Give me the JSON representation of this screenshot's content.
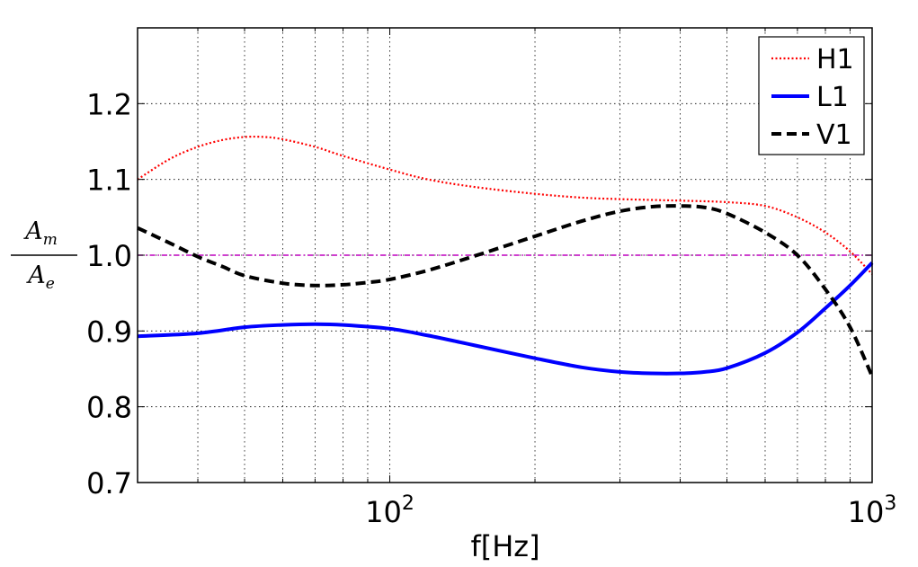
{
  "chart_data": {
    "type": "line",
    "xscale": "log",
    "xlim": [
      30,
      1000
    ],
    "ylim": [
      0.7,
      1.3
    ],
    "grid": true,
    "xlabel": "f[Hz]",
    "ylabel": {
      "numerator": "A",
      "numerator_sub": "m",
      "denominator": "A",
      "denominator_sub": "e"
    },
    "xtick_labels": [
      {
        "value": 100,
        "base": "10",
        "exp": "2"
      },
      {
        "value": 1000,
        "base": "10",
        "exp": "3"
      }
    ],
    "yticks": [
      0.7,
      0.8,
      0.9,
      1.0,
      1.1,
      1.2
    ],
    "ytick_labels": [
      "0.7",
      "0.8",
      "0.9",
      "1.0",
      "1.1",
      "1.2"
    ],
    "legend_position": "top-right",
    "reference_line": {
      "y": 1.0,
      "color": "#bf00bf",
      "style": "dash-dot"
    },
    "series": [
      {
        "name": "H1",
        "color": "#ff0000",
        "style": "dotted",
        "x": [
          30,
          35,
          40,
          45,
          50,
          55,
          60,
          70,
          80,
          100,
          120,
          150,
          200,
          250,
          300,
          400,
          500,
          600,
          700,
          800,
          900,
          1000
        ],
        "y": [
          1.1,
          1.127,
          1.143,
          1.152,
          1.156,
          1.156,
          1.153,
          1.143,
          1.131,
          1.113,
          1.1,
          1.09,
          1.081,
          1.076,
          1.074,
          1.072,
          1.07,
          1.065,
          1.05,
          1.03,
          1.005,
          0.975
        ]
      },
      {
        "name": "L1",
        "color": "#0000ff",
        "style": "solid",
        "x": [
          30,
          40,
          50,
          60,
          70,
          80,
          100,
          120,
          150,
          200,
          250,
          300,
          350,
          400,
          450,
          500,
          600,
          700,
          800,
          900,
          1000
        ],
        "y": [
          0.893,
          0.897,
          0.905,
          0.908,
          0.909,
          0.908,
          0.903,
          0.894,
          0.881,
          0.864,
          0.852,
          0.846,
          0.844,
          0.844,
          0.846,
          0.851,
          0.871,
          0.898,
          0.93,
          0.96,
          0.99
        ]
      },
      {
        "name": "V1",
        "color": "#000000",
        "style": "dashed",
        "x": [
          30,
          35,
          40,
          45,
          50,
          60,
          70,
          80,
          90,
          100,
          120,
          150,
          200,
          250,
          300,
          350,
          400,
          450,
          500,
          600,
          700,
          800,
          900,
          1000
        ],
        "y": [
          1.036,
          1.016,
          0.998,
          0.985,
          0.973,
          0.963,
          0.96,
          0.961,
          0.964,
          0.968,
          0.98,
          0.999,
          1.025,
          1.045,
          1.058,
          1.064,
          1.065,
          1.063,
          1.055,
          1.03,
          1.0,
          0.955,
          0.905,
          0.84
        ]
      }
    ]
  }
}
